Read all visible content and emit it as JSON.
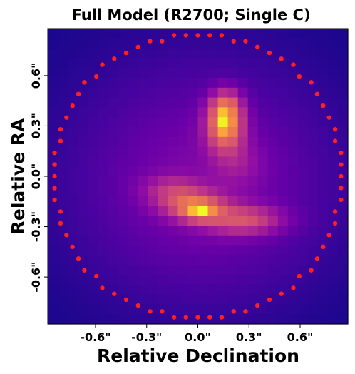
{
  "chart_data": {
    "type": "heatmap",
    "title": "Full Model (R2700; Single C)",
    "xlabel": "Relative Declination",
    "ylabel": "Relative RA",
    "xlim": [
      -0.88,
      0.88
    ],
    "ylim": [
      -0.88,
      0.88
    ],
    "x_ticks": [
      {
        "value": -0.6,
        "label": "-0.6\""
      },
      {
        "value": -0.3,
        "label": "-0.3\""
      },
      {
        "value": 0.0,
        "label": "0.0\""
      },
      {
        "value": 0.3,
        "label": "0.3\""
      },
      {
        "value": 0.6,
        "label": "0.6\""
      }
    ],
    "y_ticks": [
      {
        "value": 0.6,
        "label": "0.6\""
      },
      {
        "value": 0.3,
        "label": "0.3\""
      },
      {
        "value": 0.0,
        "label": "0.0\""
      },
      {
        "value": -0.3,
        "label": "-0.3\""
      },
      {
        "value": -0.6,
        "label": "-0.6\""
      }
    ],
    "colormap": "plasma",
    "grid": false,
    "mask_color": "#ff2020",
    "mask_radius": 0.85,
    "sources": [
      {
        "type": "gaussian",
        "x": 0.16,
        "y": 0.32,
        "sx": 0.075,
        "sy": 0.11,
        "amp": 1.0
      },
      {
        "type": "gaussian",
        "x": 0.17,
        "y": 0.44,
        "sx": 0.06,
        "sy": 0.06,
        "amp": 0.25
      },
      {
        "type": "gaussian",
        "x": -0.03,
        "y": -0.17,
        "sx": 0.13,
        "sy": 0.06,
        "amp": 0.55
      },
      {
        "type": "gaussian",
        "x": 0.02,
        "y": -0.21,
        "sx": 0.08,
        "sy": 0.04,
        "amp": 0.42
      },
      {
        "type": "gaussian",
        "x": 0.27,
        "y": -0.26,
        "sx": 0.16,
        "sy": 0.06,
        "amp": 0.55
      },
      {
        "type": "gaussian",
        "x": -0.16,
        "y": -0.08,
        "sx": 0.12,
        "sy": 0.06,
        "amp": 0.3
      },
      {
        "type": "gaussian",
        "x": 0.24,
        "y": 0.08,
        "sx": 0.1,
        "sy": 0.1,
        "amp": 0.18
      },
      {
        "type": "gaussian",
        "x": 0.05,
        "y": -0.05,
        "sx": 0.45,
        "sy": 0.4,
        "amp": 0.22
      },
      {
        "type": "gaussian",
        "x": 0.0,
        "y": 0.0,
        "sx": 0.65,
        "sy": 0.65,
        "amp": 0.12
      }
    ]
  }
}
